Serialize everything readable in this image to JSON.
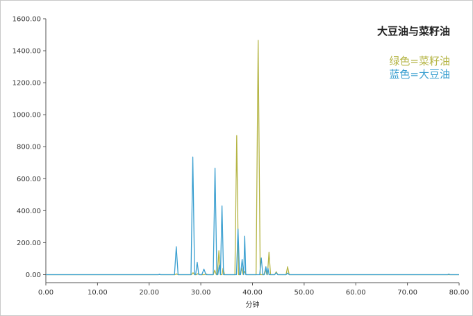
{
  "chart_data": {
    "type": "line",
    "title": "大豆油与菜籽油",
    "xlabel": "分钟",
    "ylabel": "",
    "xlim": [
      0,
      80
    ],
    "ylim": [
      -50,
      1600
    ],
    "x_ticks": [
      "0.00",
      "10.00",
      "20.00",
      "30.00",
      "40.00",
      "50.00",
      "60.00",
      "70.00",
      "80.00"
    ],
    "y_ticks": [
      "0.00",
      "200.00",
      "400.00",
      "600.00",
      "800.00",
      "1000.00",
      "1200.00",
      "1400.00",
      "1600.00"
    ],
    "grid": false,
    "legend": [
      {
        "text": "绿色=菜籽油",
        "color": "#b5b545"
      },
      {
        "text": "蓝色=大豆油",
        "color": "#3a9fd0"
      }
    ],
    "series": [
      {
        "name": "菜籽油",
        "color": "#b5b545",
        "x": [
          0,
          21.8,
          22.0,
          22.2,
          25.0,
          25.3,
          25.6,
          28.2,
          28.5,
          28.8,
          29.2,
          29.5,
          29.8,
          30.7,
          31.0,
          31.3,
          32.4,
          32.7,
          33.0,
          33.2,
          33.5,
          33.8,
          34.1,
          34.3,
          34.6,
          36.6,
          36.95,
          37.3,
          37.6,
          37.9,
          38.2,
          38.5,
          38.8,
          40.7,
          41.1,
          41.5,
          42.2,
          42.5,
          42.8,
          42.9,
          43.2,
          43.5,
          44.3,
          44.6,
          44.9,
          46.5,
          46.8,
          47.1,
          80
        ],
        "y": [
          0,
          0,
          2,
          0,
          0,
          5,
          0,
          0,
          12,
          0,
          0,
          8,
          0,
          0,
          5,
          0,
          0,
          28,
          0,
          0,
          150,
          0,
          0,
          40,
          0,
          0,
          870,
          0,
          0,
          40,
          0,
          20,
          0,
          0,
          1465,
          0,
          0,
          30,
          0,
          0,
          140,
          0,
          0,
          18,
          0,
          0,
          50,
          0,
          0
        ]
      },
      {
        "name": "大豆油",
        "color": "#3a9fd0",
        "x": [
          0,
          21.8,
          22.0,
          22.2,
          24.9,
          25.25,
          25.6,
          28.1,
          28.45,
          28.8,
          29.0,
          29.3,
          29.6,
          30.2,
          30.6,
          31.0,
          32.4,
          32.75,
          33.1,
          33.3,
          33.6,
          33.8,
          34.1,
          34.4,
          36.9,
          37.2,
          37.5,
          37.7,
          38.0,
          38.3,
          38.5,
          38.7,
          39.0,
          41.4,
          41.7,
          42.0,
          42.3,
          42.6,
          42.8,
          43.0,
          43.2,
          43.4,
          44.3,
          44.6,
          44.9,
          46.5,
          46.8,
          47.1,
          77.8,
          78.0,
          78.2,
          80
        ],
        "y": [
          0,
          0,
          3,
          0,
          0,
          175,
          0,
          0,
          735,
          0,
          0,
          78,
          0,
          0,
          35,
          0,
          0,
          665,
          0,
          0,
          60,
          0,
          430,
          0,
          0,
          285,
          0,
          0,
          95,
          0,
          240,
          0,
          0,
          0,
          105,
          0,
          0,
          50,
          0,
          40,
          0,
          0,
          0,
          12,
          0,
          0,
          10,
          0,
          0,
          4,
          0,
          0
        ]
      }
    ]
  }
}
